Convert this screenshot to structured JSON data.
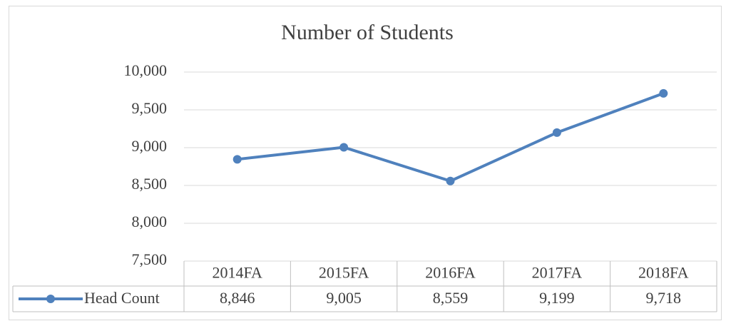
{
  "chart_data": {
    "type": "line",
    "title": "Number of Students",
    "categories": [
      "2014FA",
      "2015FA",
      "2016FA",
      "2017FA",
      "2018FA"
    ],
    "series": [
      {
        "name": "Head Count",
        "color": "#4f81bd",
        "values": [
          8846,
          9005,
          8559,
          9199,
          9718
        ],
        "value_labels": [
          "8,846",
          "9,005",
          "8,559",
          "9,199",
          "9,718"
        ]
      }
    ],
    "ylim": [
      7500,
      10000
    ],
    "yticks": [
      {
        "value": 7500,
        "label": "7,500"
      },
      {
        "value": 8000,
        "label": "8,000"
      },
      {
        "value": 8500,
        "label": "8,500"
      },
      {
        "value": 9000,
        "label": "9,000"
      },
      {
        "value": 9500,
        "label": "9,500"
      },
      {
        "value": 10000,
        "label": "10,000"
      }
    ],
    "grid": true
  }
}
